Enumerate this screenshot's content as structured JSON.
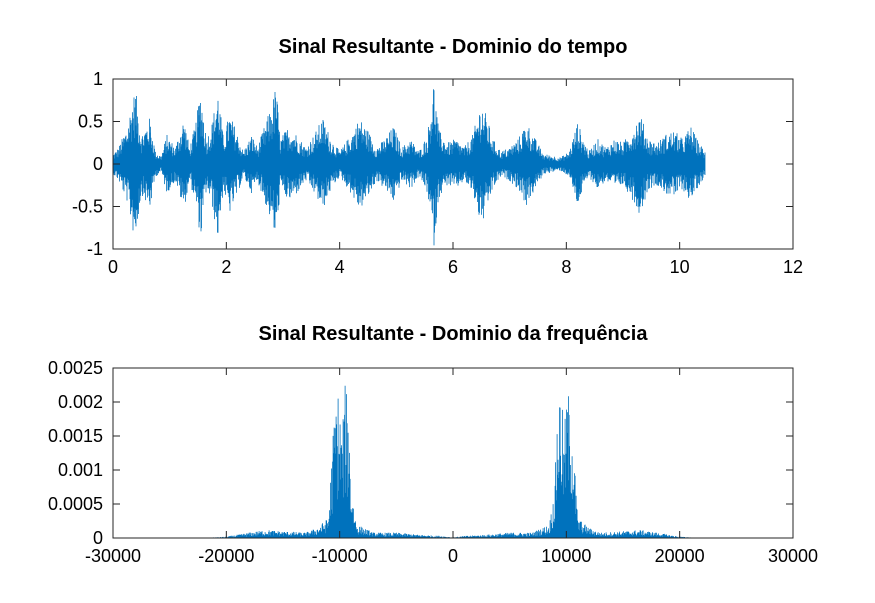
{
  "chart_data": [
    {
      "type": "line",
      "title": "Sinal Resultante - Dominio do tempo",
      "xlabel": "",
      "ylabel": "",
      "xlim": [
        0,
        12
      ],
      "ylim": [
        -1,
        1
      ],
      "xticks": [
        0,
        2,
        4,
        6,
        8,
        10,
        12
      ],
      "yticks": [
        -1,
        -0.5,
        0,
        0.5,
        1
      ],
      "xtick_labels": [
        "0",
        "2",
        "4",
        "6",
        "8",
        "10",
        "12"
      ],
      "ytick_labels": [
        "-1",
        "-0.5",
        "0",
        "0.5",
        "1"
      ],
      "grid": false,
      "color": "#0072BD",
      "signal_end": 10.45,
      "envelope": [
        [
          0.0,
          0.12
        ],
        [
          0.1,
          0.2
        ],
        [
          0.25,
          0.45
        ],
        [
          0.35,
          0.8
        ],
        [
          0.4,
          0.88
        ],
        [
          0.5,
          0.35
        ],
        [
          0.65,
          0.55
        ],
        [
          0.75,
          0.15
        ],
        [
          0.85,
          0.1
        ],
        [
          0.95,
          0.35
        ],
        [
          1.1,
          0.2
        ],
        [
          1.25,
          0.55
        ],
        [
          1.35,
          0.2
        ],
        [
          1.45,
          0.45
        ],
        [
          1.55,
          0.9
        ],
        [
          1.65,
          0.3
        ],
        [
          1.75,
          0.5
        ],
        [
          1.85,
          0.9
        ],
        [
          1.95,
          0.3
        ],
        [
          2.05,
          0.6
        ],
        [
          2.15,
          0.45
        ],
        [
          2.3,
          0.15
        ],
        [
          2.45,
          0.35
        ],
        [
          2.55,
          0.2
        ],
        [
          2.65,
          0.4
        ],
        [
          2.8,
          0.7
        ],
        [
          2.88,
          0.95
        ],
        [
          2.95,
          0.3
        ],
        [
          3.1,
          0.45
        ],
        [
          3.25,
          0.35
        ],
        [
          3.4,
          0.2
        ],
        [
          3.55,
          0.35
        ],
        [
          3.7,
          0.55
        ],
        [
          3.85,
          0.3
        ],
        [
          4.0,
          0.15
        ],
        [
          4.2,
          0.35
        ],
        [
          4.35,
          0.55
        ],
        [
          4.5,
          0.4
        ],
        [
          4.65,
          0.2
        ],
        [
          4.8,
          0.3
        ],
        [
          4.95,
          0.45
        ],
        [
          5.1,
          0.2
        ],
        [
          5.25,
          0.3
        ],
        [
          5.4,
          0.15
        ],
        [
          5.55,
          0.35
        ],
        [
          5.66,
          1.0
        ],
        [
          5.75,
          0.4
        ],
        [
          5.9,
          0.25
        ],
        [
          6.05,
          0.3
        ],
        [
          6.2,
          0.2
        ],
        [
          6.35,
          0.35
        ],
        [
          6.5,
          0.75
        ],
        [
          6.6,
          0.55
        ],
        [
          6.7,
          0.3
        ],
        [
          6.85,
          0.15
        ],
        [
          7.0,
          0.2
        ],
        [
          7.15,
          0.3
        ],
        [
          7.3,
          0.5
        ],
        [
          7.45,
          0.3
        ],
        [
          7.6,
          0.12
        ],
        [
          7.75,
          0.1
        ],
        [
          7.9,
          0.08
        ],
        [
          8.05,
          0.15
        ],
        [
          8.2,
          0.5
        ],
        [
          8.3,
          0.3
        ],
        [
          8.4,
          0.15
        ],
        [
          8.55,
          0.3
        ],
        [
          8.7,
          0.2
        ],
        [
          8.85,
          0.3
        ],
        [
          9.0,
          0.25
        ],
        [
          9.15,
          0.4
        ],
        [
          9.3,
          0.6
        ],
        [
          9.45,
          0.3
        ],
        [
          9.6,
          0.25
        ],
        [
          9.75,
          0.35
        ],
        [
          9.9,
          0.4
        ],
        [
          10.05,
          0.3
        ],
        [
          10.2,
          0.45
        ],
        [
          10.3,
          0.3
        ],
        [
          10.45,
          0.15
        ]
      ]
    },
    {
      "type": "line",
      "title": "Sinal Resultante - Dominio da frequência",
      "xlabel": "",
      "ylabel": "",
      "xlim": [
        -30000,
        30000
      ],
      "ylim": [
        0,
        0.0025
      ],
      "xticks": [
        -30000,
        -20000,
        -10000,
        0,
        10000,
        20000,
        30000
      ],
      "yticks": [
        0,
        0.0005,
        0.001,
        0.0015,
        0.002,
        0.0025
      ],
      "xtick_labels": [
        "-30000",
        "-20000",
        "-10000",
        "0",
        "10000",
        "20000",
        "30000"
      ],
      "ytick_labels": [
        "0",
        "0.0005",
        "0.001",
        "0.0015",
        "0.002",
        "0.0025"
      ],
      "grid": false,
      "color": "#0072BD",
      "envelope": [
        [
          -22050,
          0.0
        ],
        [
          -20000,
          2e-05
        ],
        [
          -18000,
          8e-05
        ],
        [
          -16500,
          0.00012
        ],
        [
          -15000,
          0.0001
        ],
        [
          -13000,
          8e-05
        ],
        [
          -12000,
          0.00015
        ],
        [
          -11000,
          0.0003
        ],
        [
          -10700,
          0.0012
        ],
        [
          -10400,
          0.0021
        ],
        [
          -10100,
          0.0022
        ],
        [
          -9800,
          0.0016
        ],
        [
          -9500,
          0.0023
        ],
        [
          -9200,
          0.002
        ],
        [
          -9000,
          0.0008
        ],
        [
          -8500,
          0.0002
        ],
        [
          -7000,
          8e-05
        ],
        [
          -5000,
          8e-05
        ],
        [
          -3000,
          5e-05
        ],
        [
          -1000,
          3e-05
        ],
        [
          0,
          1e-05
        ],
        [
          1000,
          3e-05
        ],
        [
          3000,
          5e-05
        ],
        [
          5000,
          8e-05
        ],
        [
          7000,
          8e-05
        ],
        [
          8500,
          0.0002
        ],
        [
          9000,
          0.0008
        ],
        [
          9200,
          0.002
        ],
        [
          9500,
          0.0023
        ],
        [
          9800,
          0.0016
        ],
        [
          10100,
          0.0022
        ],
        [
          10400,
          0.0021
        ],
        [
          10700,
          0.0012
        ],
        [
          11000,
          0.0003
        ],
        [
          12000,
          0.00015
        ],
        [
          13000,
          8e-05
        ],
        [
          15000,
          0.0001
        ],
        [
          16500,
          0.00012
        ],
        [
          18000,
          8e-05
        ],
        [
          20000,
          2e-05
        ],
        [
          22050,
          0.0
        ]
      ]
    }
  ]
}
